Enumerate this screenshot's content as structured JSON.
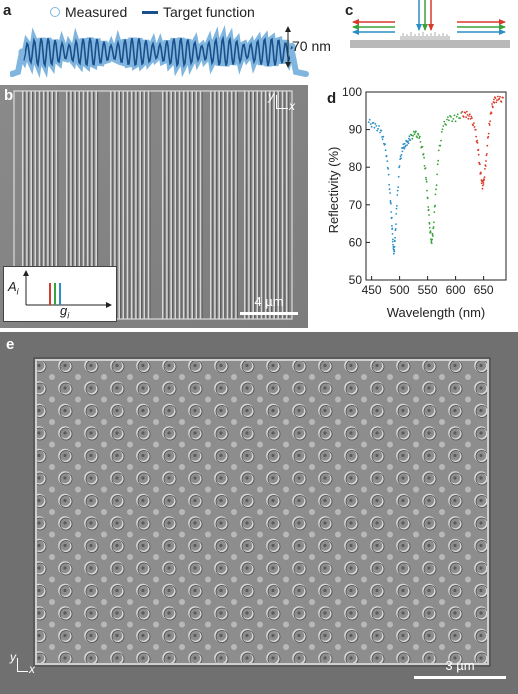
{
  "panel_labels": {
    "a": "a",
    "b": "b",
    "c": "c",
    "d": "d",
    "e": "e"
  },
  "panel_a": {
    "legend_measured": "Measured",
    "legend_target": "Target function",
    "height_label": "70 nm",
    "colors": {
      "measured": "#7fb5de",
      "target": "#1a4f8c"
    }
  },
  "panel_b": {
    "axis_y": "y",
    "axis_x": "x",
    "inset_ylabel": "A",
    "inset_ysub": "i",
    "inset_xlabel": "g",
    "inset_xsub": "i",
    "scale_bar": "4 µm"
  },
  "panel_c": {
    "colors": {
      "red": "#d93a2b",
      "green": "#3aa23a",
      "blue": "#2a8fc4"
    }
  },
  "panel_e": {
    "axis_y": "y",
    "axis_x": "x",
    "scale_bar": "3 µm"
  },
  "chart_data": {
    "type": "scatter",
    "xlabel": "Wavelength (nm)",
    "ylabel": "Reflectivity (%)",
    "xlim": [
      440,
      690
    ],
    "ylim": [
      50,
      100
    ],
    "xticks": [
      450,
      500,
      550,
      600,
      650
    ],
    "yticks": [
      50,
      60,
      70,
      80,
      90,
      100
    ],
    "series": [
      {
        "color": "#2a8fc4",
        "x": [
          445,
          455,
          465,
          472,
          478,
          483,
          486,
          488,
          490,
          492,
          495,
          500,
          505,
          510,
          515,
          520
        ],
        "y": [
          92,
          91,
          90,
          87,
          82,
          73,
          66,
          60,
          57,
          61,
          70,
          81,
          85,
          86,
          87,
          88
        ]
      },
      {
        "color": "#3aa23a",
        "x": [
          520,
          528,
          535,
          542,
          547,
          551,
          554,
          557,
          560,
          564,
          570,
          578,
          588,
          600,
          612
        ],
        "y": [
          88,
          89,
          88,
          84,
          78,
          70,
          64,
          60,
          63,
          72,
          84,
          91,
          93,
          93,
          94
        ]
      },
      {
        "color": "#d93a2b",
        "x": [
          612,
          620,
          628,
          635,
          640,
          644,
          648,
          651,
          655,
          660,
          665,
          670,
          678,
          686
        ],
        "y": [
          94,
          94,
          93,
          90,
          85,
          79,
          75,
          77,
          83,
          91,
          96,
          98,
          98,
          98
        ]
      }
    ]
  }
}
